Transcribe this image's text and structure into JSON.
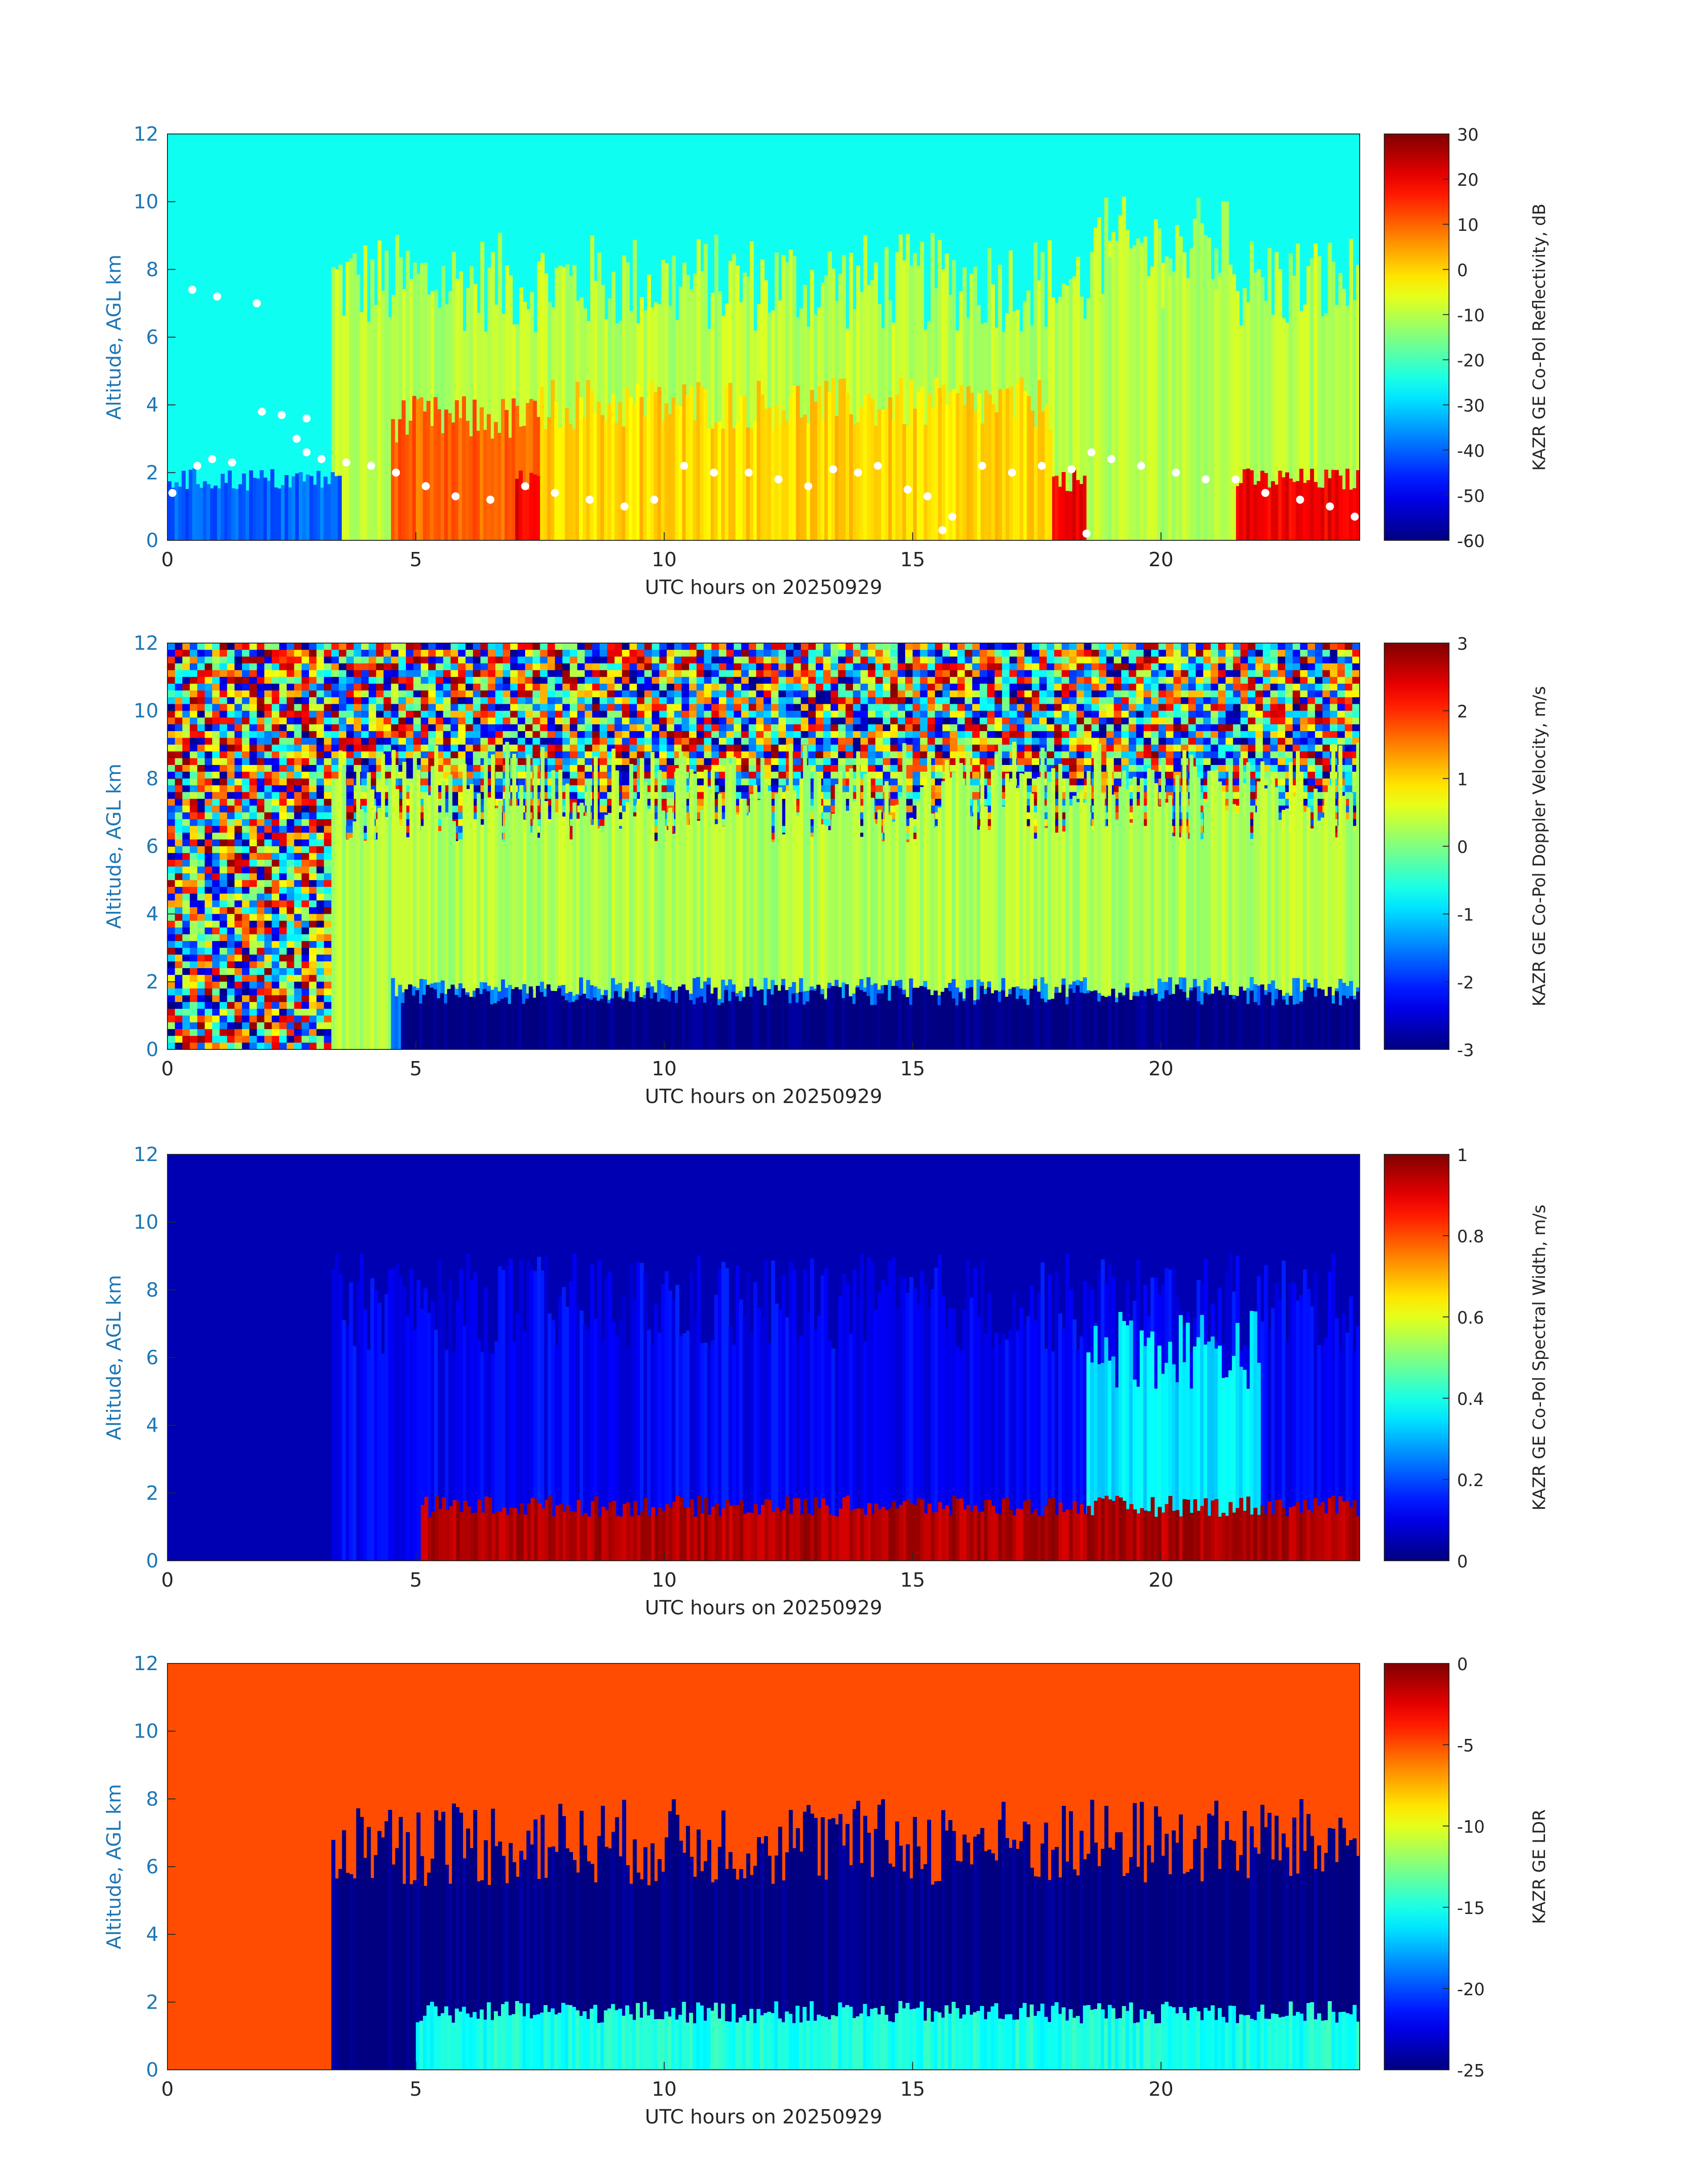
{
  "figure": {
    "title": "",
    "panels": [
      {
        "chart_data": {
          "type": "heatmap",
          "variable": "reflectivity",
          "x": {
            "label": "UTC hours on 20250929",
            "range": [
              0,
              24
            ],
            "ticks": [
              "0",
              "5",
              "10",
              "15",
              "20"
            ]
          },
          "y": {
            "label": "Altitude, AGL km",
            "range": [
              0,
              12
            ],
            "ticks": [
              "0",
              "2",
              "4",
              "6",
              "8",
              "10",
              "12"
            ]
          },
          "colorbar": {
            "label": "KAZR GE Co-Pol Reflectivity, dB",
            "range": [
              -60,
              30
            ],
            "ticks": [
              "-60",
              "-50",
              "-40",
              "-30",
              "-20",
              "-10",
              "0",
              "10",
              "20",
              "30"
            ],
            "colormap": "jet"
          },
          "overlay": {
            "type": "scatter",
            "color": "#ffffff",
            "description_hours_km": [
              [
                0.1,
                1.4
              ],
              [
                0.6,
                2.2
              ],
              [
                0.9,
                2.4
              ],
              [
                1.3,
                2.3
              ],
              [
                1.9,
                3.8
              ],
              [
                2.3,
                3.7
              ],
              [
                2.8,
                3.6
              ],
              [
                3.1,
                2.4
              ],
              [
                3.6,
                2.3
              ],
              [
                4.1,
                2.2
              ],
              [
                4.6,
                2.0
              ],
              [
                5.2,
                1.6
              ],
              [
                5.8,
                1.3
              ],
              [
                6.5,
                1.2
              ],
              [
                7.2,
                1.6
              ],
              [
                7.8,
                1.4
              ],
              [
                8.5,
                1.2
              ],
              [
                9.2,
                1.0
              ],
              [
                9.8,
                1.2
              ],
              [
                10.4,
                2.2
              ],
              [
                11.0,
                2.0
              ],
              [
                11.7,
                2.0
              ],
              [
                12.3,
                1.8
              ],
              [
                12.9,
                1.6
              ],
              [
                13.4,
                2.1
              ],
              [
                13.9,
                2.0
              ],
              [
                14.3,
                2.2
              ],
              [
                14.9,
                1.5
              ],
              [
                15.3,
                1.3
              ],
              [
                15.8,
                0.7
              ],
              [
                16.4,
                2.2
              ],
              [
                17.0,
                2.0
              ],
              [
                17.6,
                2.2
              ],
              [
                18.2,
                2.1
              ],
              [
                18.6,
                2.6
              ],
              [
                19.0,
                2.4
              ],
              [
                19.6,
                2.2
              ],
              [
                20.3,
                2.0
              ],
              [
                20.9,
                1.8
              ],
              [
                21.5,
                1.8
              ],
              [
                22.1,
                1.4
              ],
              [
                22.8,
                1.2
              ],
              [
                23.4,
                1.0
              ],
              [
                23.9,
                0.7
              ],
              [
                15.6,
                0.3
              ],
              [
                18.5,
                0.2
              ],
              [
                0.5,
                7.4
              ],
              [
                1.0,
                7.2
              ],
              [
                1.8,
                7.0
              ],
              [
                2.6,
                3.0
              ],
              [
                2.8,
                2.6
              ]
            ]
          },
          "background_value": -25,
          "regions": [
            {
              "t0": 3.3,
              "t1": 24,
              "top_km": 8.5,
              "value": -10
            },
            {
              "t0": 4.5,
              "t1": 7.5,
              "top_km": 4.0,
              "value": 10
            },
            {
              "t0": 7.0,
              "t1": 24,
              "top_km": 2.0,
              "value": 20
            },
            {
              "t0": 7.5,
              "t1": 17.8,
              "top_km": 4.5,
              "value": 0
            },
            {
              "t0": 18.5,
              "t1": 21.5,
              "top_km": 9.5,
              "value": -10
            },
            {
              "t0": 0,
              "t1": 3.5,
              "top_km": 2.0,
              "value": -40
            }
          ]
        }
      },
      {
        "chart_data": {
          "type": "heatmap",
          "variable": "doppler_velocity",
          "x": {
            "label": "UTC hours on 20250929",
            "range": [
              0,
              24
            ],
            "ticks": [
              "0",
              "5",
              "10",
              "15",
              "20"
            ]
          },
          "y": {
            "label": "Altitude, AGL km",
            "range": [
              0,
              12
            ],
            "ticks": [
              "0",
              "2",
              "4",
              "6",
              "8",
              "10",
              "12"
            ]
          },
          "colorbar": {
            "label": "KAZR GE Co-Pol Doppler Velocity, m/s",
            "range": [
              -3,
              3
            ],
            "ticks": [
              "-3",
              "-2",
              "-1",
              "0",
              "1",
              "2",
              "3"
            ],
            "colormap": "jet"
          },
          "background_value": "noise",
          "regions": [
            {
              "t0": 3.3,
              "t1": 24,
              "top_km": 8.5,
              "value": 0.3
            },
            {
              "t0": 4.5,
              "t1": 24,
              "top_km": 2.0,
              "value": -1.5
            },
            {
              "t0": 4.7,
              "t1": 24,
              "top_km": 1.8,
              "value": -3
            }
          ]
        }
      },
      {
        "chart_data": {
          "type": "heatmap",
          "variable": "spectral_width",
          "x": {
            "label": "UTC hours on 20250929",
            "range": [
              0,
              24
            ],
            "ticks": [
              "0",
              "5",
              "10",
              "15",
              "20"
            ]
          },
          "y": {
            "label": "Altitude, AGL km",
            "range": [
              0,
              12
            ],
            "ticks": [
              "0",
              "2",
              "4",
              "6",
              "8",
              "10",
              "12"
            ]
          },
          "colorbar": {
            "label": "KAZR GE Co-Pol Spectral Width, m/s",
            "range": [
              0,
              1
            ],
            "ticks": [
              "0",
              "0.2",
              "0.4",
              "0.6",
              "0.8",
              "1"
            ],
            "colormap": "jet"
          },
          "background_value": 0.05,
          "regions": [
            {
              "t0": 3.3,
              "t1": 24,
              "top_km": 8.5,
              "value": 0.12
            },
            {
              "t0": 18.5,
              "t1": 22,
              "top_km": 7,
              "value": 0.35
            },
            {
              "t0": 5.1,
              "t1": 24,
              "top_km": 1.8,
              "value": 0.95
            }
          ]
        }
      },
      {
        "chart_data": {
          "type": "heatmap",
          "variable": "ldr",
          "x": {
            "label": "UTC hours on 20250929",
            "range": [
              0,
              24
            ],
            "ticks": [
              "0",
              "5",
              "10",
              "15",
              "20"
            ]
          },
          "y": {
            "label": "Altitude, AGL km",
            "range": [
              0,
              12
            ],
            "ticks": [
              "0",
              "2",
              "4",
              "6",
              "8",
              "10",
              "12"
            ]
          },
          "colorbar": {
            "label": "KAZR GE LDR",
            "range": [
              -25,
              0
            ],
            "ticks": [
              "-25",
              "-20",
              "-15",
              "-10",
              "-5",
              "0"
            ],
            "colormap": "jet"
          },
          "background_value": -5,
          "regions": [
            {
              "t0": 3.3,
              "t1": 24,
              "top_km": 7.5,
              "value": -25
            },
            {
              "t0": 5.0,
              "t1": 24,
              "top_km": 1.9,
              "value": -15
            }
          ]
        }
      }
    ]
  },
  "colors": {
    "axis_text": "#262626",
    "y_axis_text": "#1f77b4",
    "overlay_dots": "#ffffff"
  }
}
